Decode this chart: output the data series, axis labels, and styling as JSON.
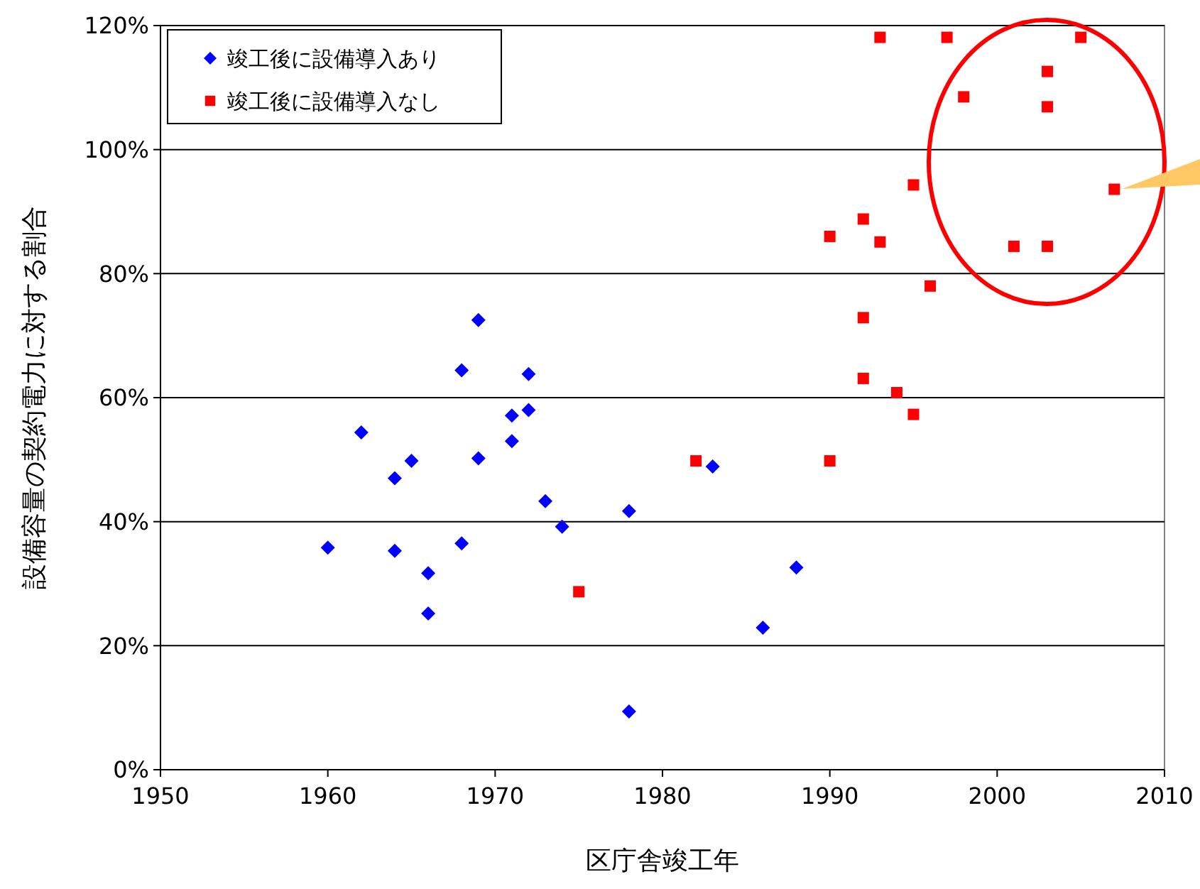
{
  "chart_data": {
    "type": "scatter",
    "xlabel": "区庁舎竣工年",
    "ylabel": "設備容量の契約電力に対する割合",
    "xlim": [
      1950,
      2010
    ],
    "xticks": [
      1950,
      1960,
      1970,
      1980,
      1990,
      2000,
      2010
    ],
    "ylim": [
      0,
      120
    ],
    "yticks": [
      {
        "value": 0,
        "label": "0%"
      },
      {
        "value": 20,
        "label": "20%"
      },
      {
        "value": 40,
        "label": "40%"
      },
      {
        "value": 60,
        "label": "60%"
      },
      {
        "value": 80,
        "label": "80%"
      },
      {
        "value": 100,
        "label": "100%"
      },
      {
        "value": 120,
        "label": "120%"
      }
    ],
    "grid": "y",
    "legend": "top left",
    "series": [
      {
        "name": "竣工後に設備導入あり",
        "color": "#0000ff",
        "marker": "diamond",
        "x": [
          1960,
          1962,
          1964,
          1964,
          1965,
          1966,
          1966,
          1968,
          1968,
          1969,
          1969,
          1971,
          1971,
          1972,
          1972,
          1973,
          1974,
          1978,
          1978,
          1983,
          1986,
          1988
        ],
        "values": [
          35.8,
          54.4,
          47.0,
          35.3,
          49.8,
          31.7,
          25.2,
          64.4,
          36.5,
          72.5,
          50.2,
          57.1,
          53.0,
          63.8,
          58.0,
          43.3,
          39.2,
          41.7,
          9.4,
          48.9,
          22.9,
          32.6
        ]
      },
      {
        "name": "竣工後に設備導入なし",
        "color": "#ff0000",
        "marker": "square",
        "x": [
          1975,
          1982,
          1990,
          1990,
          1992,
          1992,
          1992,
          1993,
          1993,
          1994,
          1995,
          1995,
          1996,
          1997,
          1998,
          2001,
          2003,
          2003,
          2003,
          2005,
          2007
        ],
        "values": [
          28.7,
          49.8,
          49.8,
          86.0,
          88.8,
          72.9,
          63.1,
          85.1,
          118.1,
          60.8,
          57.3,
          94.3,
          78.0,
          118.1,
          108.5,
          84.4,
          84.4,
          112.6,
          106.9,
          118.1,
          93.6
        ]
      }
    ]
  }
}
